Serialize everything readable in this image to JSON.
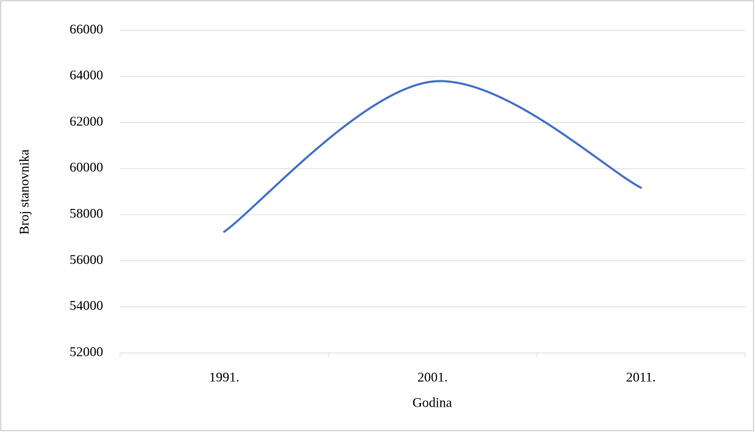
{
  "chart_data": {
    "type": "line",
    "smooth": true,
    "x_label": "Godina",
    "y_label": "Broj stanovnika",
    "categories": [
      "1991.",
      "2001.",
      "2011."
    ],
    "series": [
      {
        "name": "Broj stanovnika",
        "color": "#4472c4",
        "values": [
          57260,
          63780,
          59170
        ]
      }
    ],
    "ylim": [
      52000,
      66000
    ],
    "yticks": [
      52000,
      54000,
      56000,
      58000,
      60000,
      62000,
      64000,
      66000
    ],
    "grid": true
  }
}
